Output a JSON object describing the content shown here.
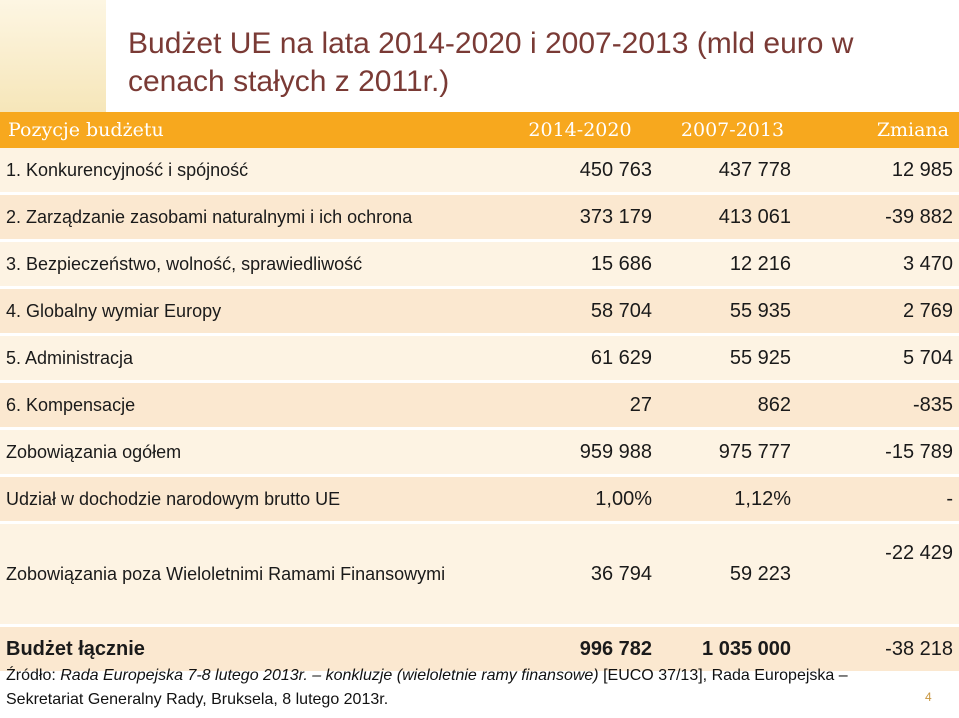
{
  "slide": {
    "title": "Budżet UE na lata 2014-2020 i 2007-2013 (mld euro w cenach stałych z 2011r.)",
    "page_number": "4"
  },
  "table": {
    "headers": [
      "Pozycje budżetu",
      "2014-2020",
      "2007-2013",
      "Zmiana"
    ],
    "rows": [
      {
        "label": "1. Konkurencyjność i spójność",
        "v2014": "450 763",
        "v2007": "437 778",
        "change": "12 985"
      },
      {
        "label": "2. Zarządzanie zasobami naturalnymi i ich ochrona",
        "v2014": "373 179",
        "v2007": "413 061",
        "change": "-39 882"
      },
      {
        "label": "3. Bezpieczeństwo, wolność, sprawiedliwość",
        "v2014": "15 686",
        "v2007": "12 216",
        "change": "3 470"
      },
      {
        "label": "4. Globalny wymiar Europy",
        "v2014": "58 704",
        "v2007": "55 935",
        "change": "2 769"
      },
      {
        "label": "5. Administracja",
        "v2014": "61 629",
        "v2007": "55 925",
        "change": "5 704"
      },
      {
        "label": "6. Kompensacje",
        "v2014": "27",
        "v2007": "862",
        "change": "-835"
      },
      {
        "label": "Zobowiązania ogółem",
        "v2014": "959 988",
        "v2007": "975 777",
        "change": "-15 789"
      },
      {
        "label": "Udział w dochodzie narodowym brutto UE",
        "v2014": "1,00%",
        "v2007": "1,12%",
        "change": "-"
      },
      {
        "label": "Zobowiązania poza Wieloletnimi Ramami Finansowymi",
        "v2014": "36 794",
        "v2007": "59 223",
        "change": "-22 429"
      },
      {
        "label": "Budżet łącznie",
        "v2014": "996 782",
        "v2007": "1 035 000",
        "change": "-38 218"
      }
    ]
  },
  "source": {
    "prefix": "Źródło: ",
    "italic1": "Rada Europejska 7-8 lutego 2013r. – konkluzje (wieloletnie ramy finansowe)",
    "rest": " [EUCO 37/13], Rada Europejska – Sekretariat Generalny Rady, Bruksela, 8 lutego 2013r."
  }
}
